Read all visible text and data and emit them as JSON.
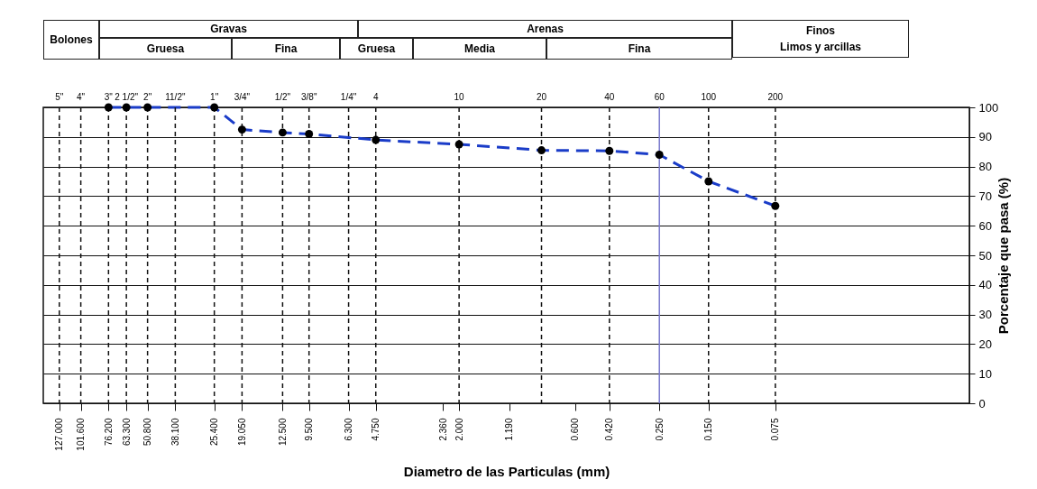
{
  "chart_data": {
    "type": "line",
    "xlabel": "Diametro de las Particulas (mm)",
    "ylabel": "Porcentaje que pasa (%)",
    "annotations": [
      "Bolones",
      "Gravas",
      "Gruesa",
      "Fina",
      "Arenas",
      "Gruesa",
      "Media",
      "Fina",
      "Finos",
      "Limos y arcillas",
      "5\"",
      "4\"",
      "3\"",
      "2 1/2\"",
      "2\"",
      "11/2\"",
      "1\"",
      "3/4\"",
      "1/2\"",
      "3/8\"",
      "1/4\"",
      "4",
      "10",
      "20",
      "40",
      "60",
      "100",
      "200"
    ],
    "log": "x",
    "xlim": [
      150,
      0.01
    ],
    "ylim": [
      0,
      100
    ],
    "yticks": [
      0,
      10,
      20,
      30,
      40,
      50,
      60,
      70,
      80,
      90,
      100
    ],
    "xticks": [
      {
        "value": 127,
        "label": "127.000"
      },
      {
        "value": 101.6,
        "label": "101.600"
      },
      {
        "value": 76.2,
        "label": "76.200"
      },
      {
        "value": 63.3,
        "label": "63.300"
      },
      {
        "value": 50.8,
        "label": "50.800"
      },
      {
        "value": 38.1,
        "label": "38.100"
      },
      {
        "value": 25.4,
        "label": "25.400"
      },
      {
        "value": 19.05,
        "label": "19.050"
      },
      {
        "value": 12.5,
        "label": "12.500"
      },
      {
        "value": 9.5,
        "label": "9.500"
      },
      {
        "value": 6.3,
        "label": "6.300"
      },
      {
        "value": 4.75,
        "label": "4.750"
      },
      {
        "value": 2.36,
        "label": "2.360"
      },
      {
        "value": 2,
        "label": "2.000"
      },
      {
        "value": 1.19,
        "label": "1.190"
      },
      {
        "value": 0.6,
        "label": "0.600"
      },
      {
        "value": 0.42,
        "label": "0.420"
      },
      {
        "value": 0.25,
        "label": "0.250"
      },
      {
        "value": 0.15,
        "label": "0.150"
      },
      {
        "value": 0.075,
        "label": "0.075"
      }
    ],
    "ref_lines": [
      {
        "axis": "x",
        "value": 127,
        "line_style": "dashed"
      },
      {
        "axis": "x",
        "value": 101.6,
        "line_style": "dashed"
      },
      {
        "axis": "x",
        "value": 76.2,
        "line_style": "dashed"
      },
      {
        "axis": "x",
        "value": 63.3,
        "line_style": "dashed"
      },
      {
        "axis": "x",
        "value": 50.8,
        "line_style": "dashed"
      },
      {
        "axis": "x",
        "value": 38.1,
        "line_style": "dashed"
      },
      {
        "axis": "x",
        "value": 25.4,
        "line_style": "dashed"
      },
      {
        "axis": "x",
        "value": 19.05,
        "line_style": "dashed"
      },
      {
        "axis": "x",
        "value": 12.5,
        "line_style": "dashed"
      },
      {
        "axis": "x",
        "value": 9.5,
        "line_style": "dashed"
      },
      {
        "axis": "x",
        "value": 6.3,
        "line_style": "dashed"
      },
      {
        "axis": "x",
        "value": 4.75,
        "line_style": "dashed"
      },
      {
        "axis": "x",
        "value": 2,
        "line_style": "dashed"
      },
      {
        "axis": "x",
        "value": 0.85,
        "line_style": "dashed"
      },
      {
        "axis": "x",
        "value": 0.42,
        "line_style": "dashed"
      },
      {
        "axis": "x",
        "value": 0.25,
        "line_style": "solid",
        "color": "#7777cc"
      },
      {
        "axis": "x",
        "value": 0.15,
        "line_style": "dashed"
      },
      {
        "axis": "x",
        "value": 0.075,
        "line_style": "dashed"
      }
    ],
    "grid": "y",
    "marker": "circle",
    "line_style": "dashed",
    "series": [
      {
        "color": "#1a3cc8",
        "x": [
          76.2,
          63.3,
          50.8,
          25.4,
          19.05,
          12.5,
          9.5,
          4.75,
          2,
          0.85,
          0.42,
          0.25,
          0.15,
          0.075
        ],
        "values": [
          100,
          100,
          100,
          100,
          92.5,
          91.5,
          91,
          89,
          87.5,
          85.5,
          85.3,
          84,
          75,
          66.7
        ]
      }
    ]
  }
}
